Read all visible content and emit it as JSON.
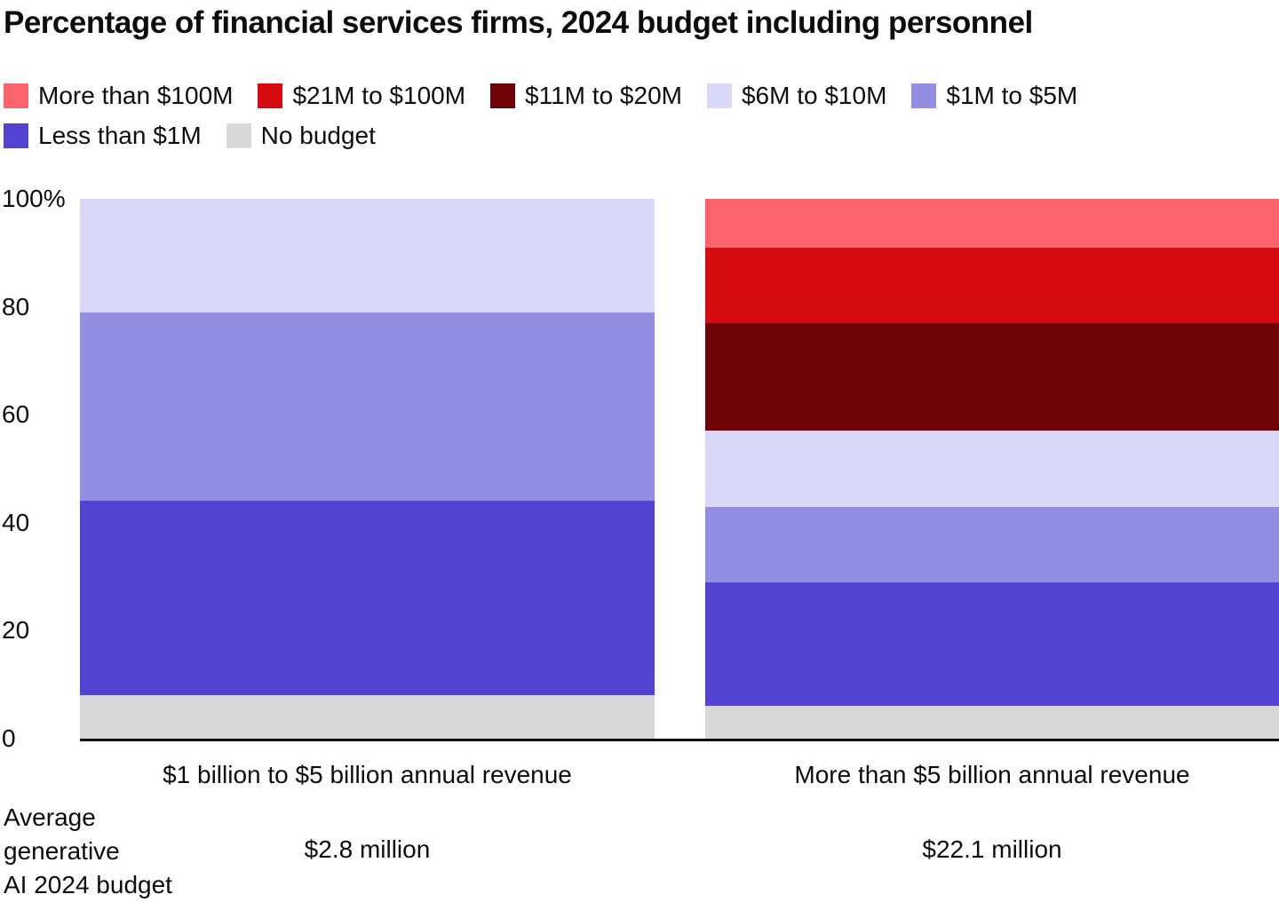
{
  "page": {
    "background": "#ffffff",
    "text_color": "#0d0d0d",
    "axis_color": "#0d0d0d"
  },
  "chart_data": {
    "type": "bar",
    "stacked": true,
    "orientation": "vertical",
    "title": "Percentage of financial services firms, 2024 budget including personnel",
    "categories": [
      "$1 billion to $5 billion annual revenue",
      "More than $5 billion annual revenue"
    ],
    "series": [
      {
        "name": "More than $100M",
        "color": "#fa646a",
        "values": [
          0,
          9
        ]
      },
      {
        "name": "$21M to $100M",
        "color": "#d50b10",
        "values": [
          0,
          14
        ]
      },
      {
        "name": "$11M to $20M",
        "color": "#700308",
        "values": [
          0,
          20
        ]
      },
      {
        "name": "$6M to $10M",
        "color": "#d9d8f9",
        "values": [
          21,
          14
        ]
      },
      {
        "name": "$1M to $5M",
        "color": "#928ee2",
        "values": [
          35,
          14
        ]
      },
      {
        "name": "Less than $1M",
        "color": "#5244d0",
        "values": [
          36,
          23
        ]
      },
      {
        "name": "No budget",
        "color": "#d9d9d9",
        "values": [
          8,
          6
        ]
      }
    ],
    "y_axis": {
      "min": 0,
      "max": 100,
      "unit": "%",
      "grid": false,
      "ticks": [
        {
          "label": "100%",
          "value": 100
        },
        {
          "label": "80",
          "value": 80
        },
        {
          "label": "60",
          "value": 60
        },
        {
          "label": "40",
          "value": 40
        },
        {
          "label": "20",
          "value": 20
        },
        {
          "label": "0",
          "value": 0
        }
      ]
    },
    "legend_position": "top",
    "footer": {
      "label": "Average\ngenerative\nAI 2024 budget",
      "values": [
        "$2.8 million",
        "$22.1 million"
      ]
    }
  }
}
